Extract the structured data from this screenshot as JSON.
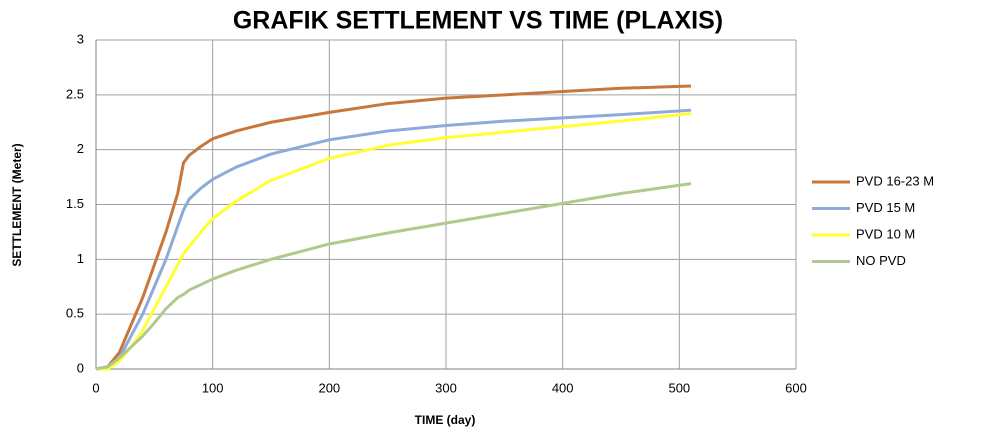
{
  "chart_data": {
    "type": "line",
    "title": "GRAFIK SETTLEMENT VS TIME (PLAXIS)",
    "x_label": "TIME (day)",
    "y_label": "SETTLEMENT (Meter)",
    "x": [
      0,
      10,
      20,
      30,
      40,
      50,
      60,
      70,
      75,
      80,
      90,
      100,
      120,
      150,
      200,
      250,
      300,
      350,
      400,
      450,
      510
    ],
    "series": [
      {
        "name": "PVD 16-23 M",
        "color": "#c8773c",
        "values": [
          0,
          0.02,
          0.15,
          0.4,
          0.65,
          0.95,
          1.25,
          1.6,
          1.88,
          1.95,
          2.03,
          2.1,
          2.17,
          2.25,
          2.34,
          2.42,
          2.47,
          2.5,
          2.53,
          2.56,
          2.58
        ]
      },
      {
        "name": "PVD 15 M",
        "color": "#8eaad8",
        "values": [
          0,
          0.02,
          0.1,
          0.3,
          0.5,
          0.75,
          1.0,
          1.3,
          1.45,
          1.55,
          1.65,
          1.73,
          1.84,
          1.96,
          2.09,
          2.17,
          2.22,
          2.26,
          2.29,
          2.32,
          2.36
        ]
      },
      {
        "name": "PVD 10 M",
        "color": "#ffff33",
        "values": [
          0,
          0,
          0.07,
          0.2,
          0.35,
          0.55,
          0.75,
          0.95,
          1.05,
          1.12,
          1.25,
          1.37,
          1.53,
          1.72,
          1.92,
          2.04,
          2.11,
          2.16,
          2.21,
          2.26,
          2.33
        ]
      },
      {
        "name": "NO PVD",
        "color": "#afca8c",
        "values": [
          0,
          0.02,
          0.1,
          0.2,
          0.3,
          0.42,
          0.55,
          0.65,
          0.68,
          0.72,
          0.77,
          0.82,
          0.9,
          1.0,
          1.14,
          1.24,
          1.33,
          1.42,
          1.51,
          1.6,
          1.69
        ]
      }
    ],
    "xlim": [
      0,
      600
    ],
    "xticks": [
      0,
      100,
      200,
      300,
      400,
      500,
      600
    ],
    "ylim": [
      0,
      3
    ],
    "yticks": [
      0,
      0.5,
      1,
      1.5,
      2,
      2.5,
      3
    ],
    "grid": true,
    "legend": "right"
  }
}
